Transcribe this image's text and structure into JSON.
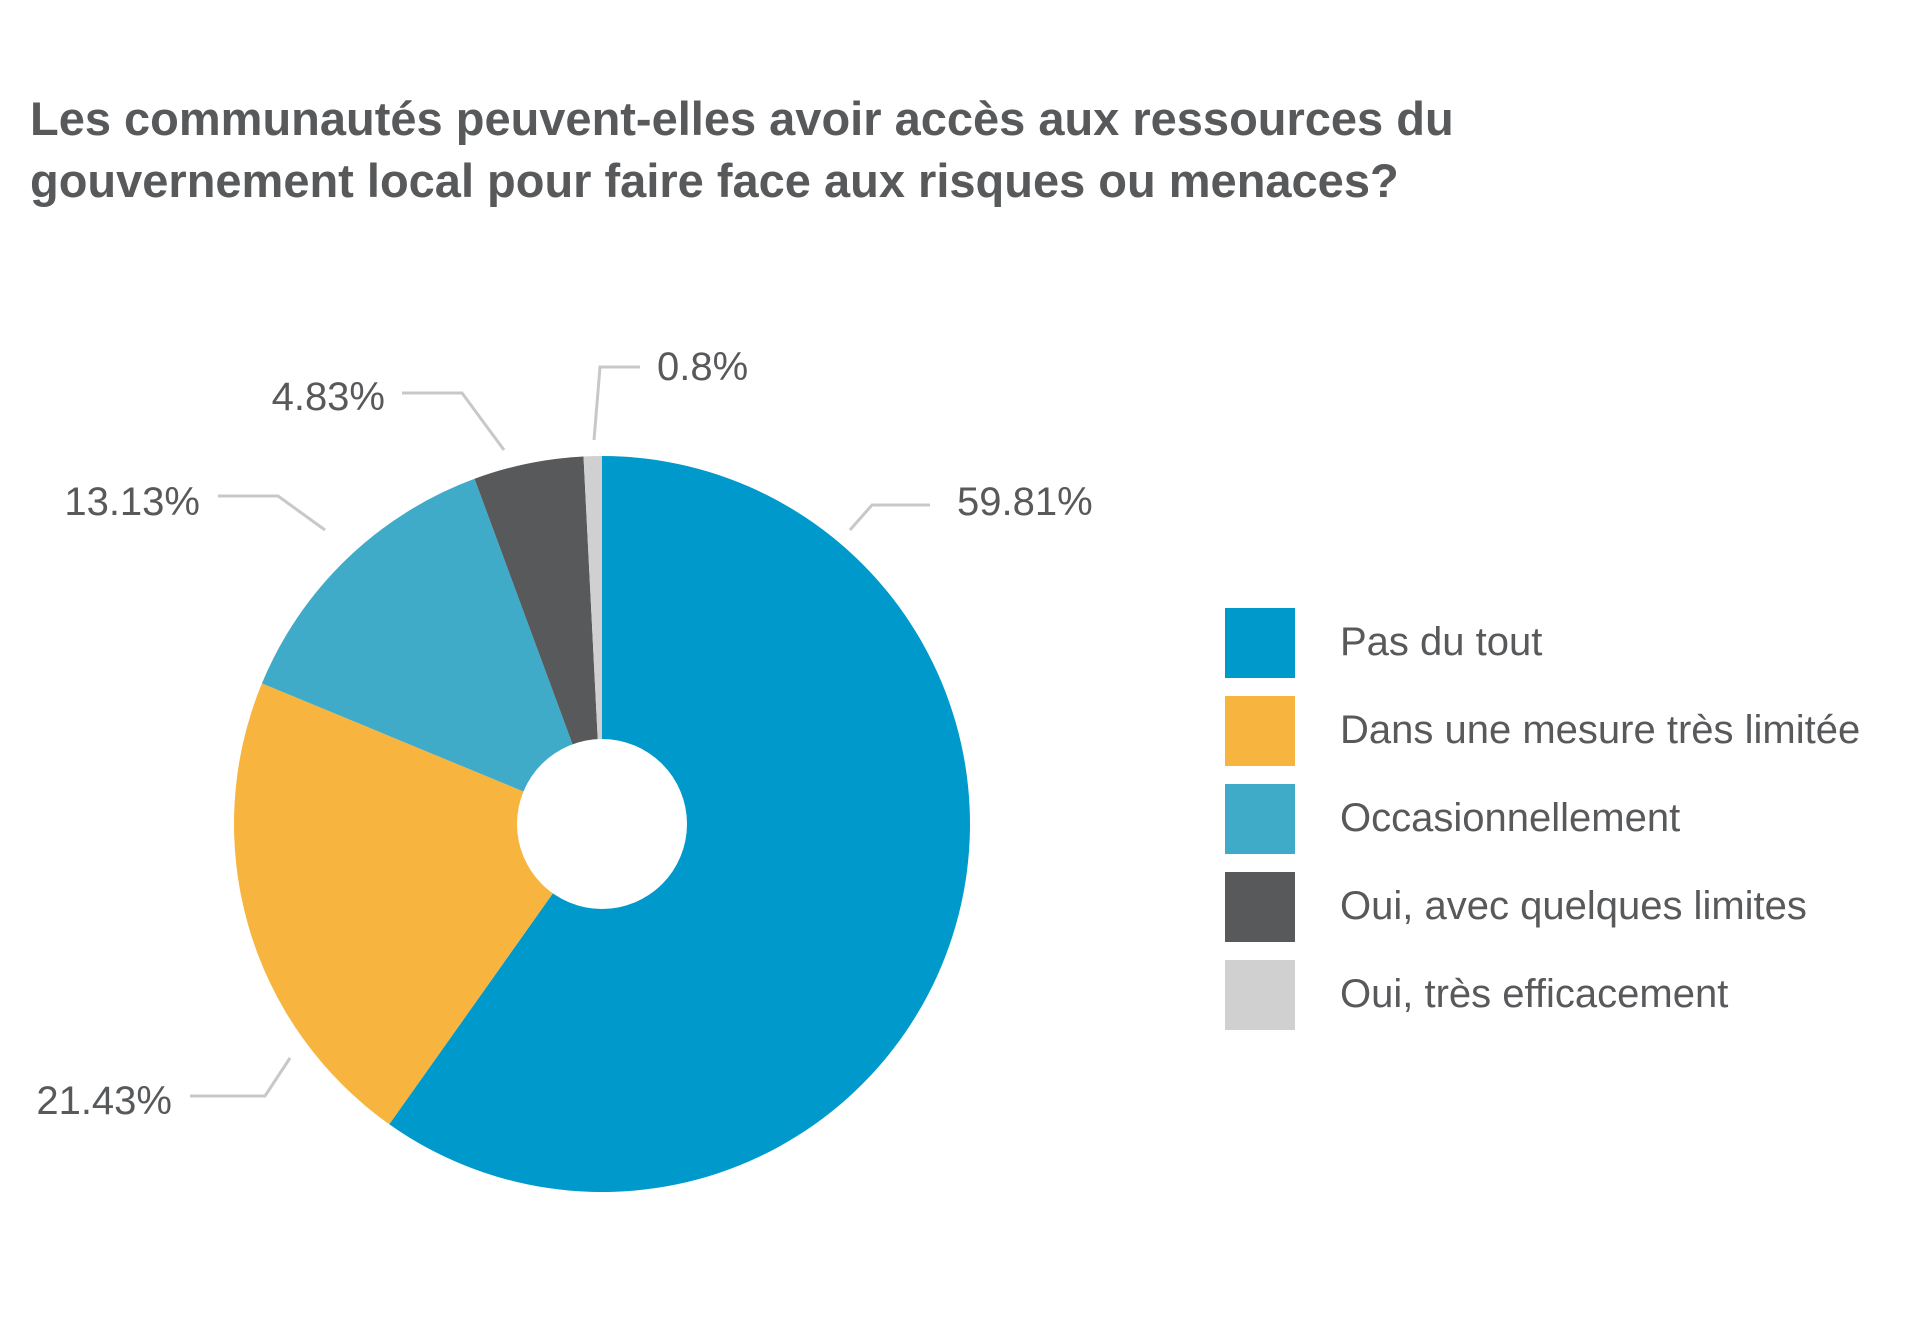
{
  "chart_data": {
    "type": "pie",
    "title_lines": [
      "Les communautés peuvent-elles avoir accès aux ressources du",
      "gouvernement local pour faire face aux risques ou menaces?"
    ],
    "categories": [
      "Pas du tout",
      "Dans une mesure très limitée",
      "Occasionnellement",
      "Oui, avec quelques limites",
      "Oui, très efficacement"
    ],
    "values": [
      59.81,
      21.43,
      13.13,
      4.83,
      0.8
    ],
    "labels": [
      "59.81%",
      "21.43%",
      "13.13%",
      "4.83%",
      "0.8%"
    ],
    "colors": [
      "#0099cc",
      "#f7b540",
      "#40abc8",
      "#58595b",
      "#d0d0d0"
    ],
    "legend_position": "right",
    "donut_hole": true
  }
}
